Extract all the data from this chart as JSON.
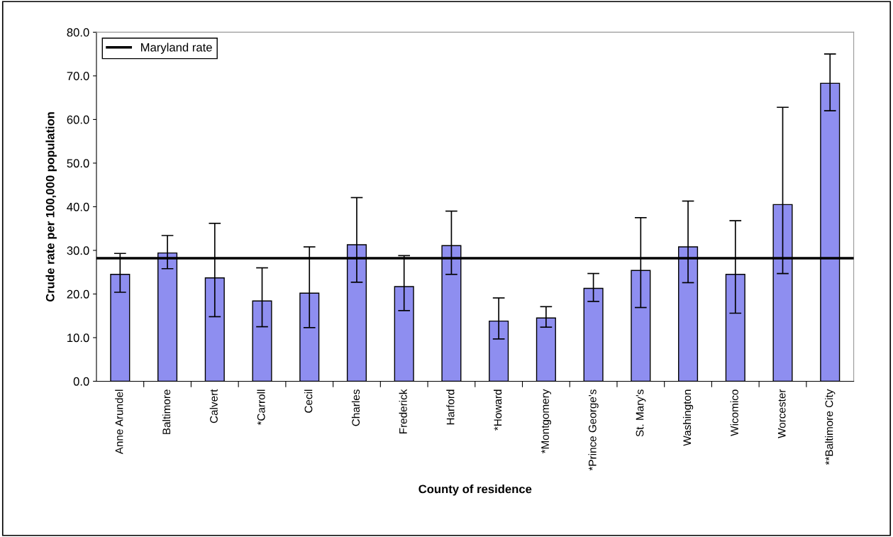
{
  "chart_data": {
    "type": "bar",
    "xlabel": "County of residence",
    "ylabel": "Crude rate per 100,000 population",
    "categories": [
      "Anne Arundel",
      "Baltimore",
      "Calvert",
      "*Carroll",
      "Cecil",
      "Charles",
      "Frederick",
      "Harford",
      "*Howard",
      "*Montgomery",
      "*Prince George's",
      "St. Mary's",
      "Washington",
      "Wicomico",
      "Worcester",
      "**Baltimore City"
    ],
    "values": [
      24.5,
      29.4,
      23.7,
      18.4,
      20.2,
      31.3,
      21.7,
      31.1,
      13.8,
      14.5,
      21.3,
      25.4,
      30.8,
      24.5,
      40.5,
      68.3
    ],
    "errors": [
      [
        20.4,
        29.3
      ],
      [
        25.8,
        33.4
      ],
      [
        14.8,
        36.2
      ],
      [
        12.5,
        26.0
      ],
      [
        12.3,
        30.8
      ],
      [
        22.7,
        42.1
      ],
      [
        16.2,
        28.8
      ],
      [
        24.5,
        39.0
      ],
      [
        9.7,
        19.1
      ],
      [
        12.4,
        17.1
      ],
      [
        18.3,
        24.7
      ],
      [
        16.9,
        37.5
      ],
      [
        22.6,
        41.3
      ],
      [
        15.6,
        36.8
      ],
      [
        24.7,
        62.8
      ],
      [
        62.0,
        75.0
      ]
    ],
    "color": "#8e8ef0",
    "ylim": [
      0,
      80
    ],
    "yticks": [
      {
        "value": 0,
        "label": "0.0"
      },
      {
        "value": 10,
        "label": "10.0"
      },
      {
        "value": 20,
        "label": "20.0"
      },
      {
        "value": 30,
        "label": "30.0"
      },
      {
        "value": 40,
        "label": "40.0"
      },
      {
        "value": 50,
        "label": "50.0"
      },
      {
        "value": 60,
        "label": "60.0"
      },
      {
        "value": 70,
        "label": "70.0"
      },
      {
        "value": 80,
        "label": "80.0"
      }
    ],
    "ref_lines": [
      {
        "axis": "y",
        "value": 28.2,
        "label": "Maryland rate",
        "color": "#000000",
        "line_style": "solid"
      }
    ],
    "legend": "top left",
    "grid": false
  }
}
